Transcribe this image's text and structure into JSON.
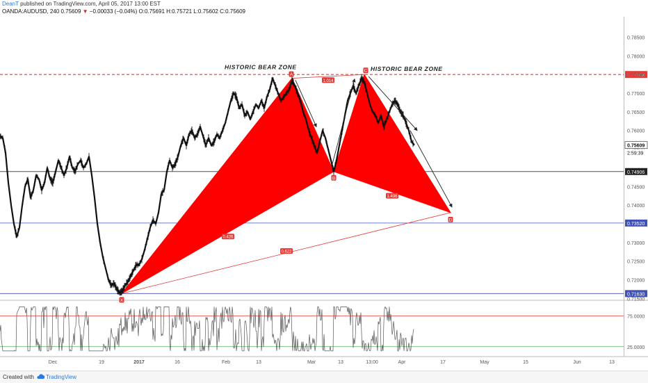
{
  "header": {
    "author": "DeanT",
    "published": "published on TradingView.com, April 05, 2017 13:00 EST",
    "symbol_line": "OANDA:AUDUSD, 240",
    "last": "0.75609",
    "change": "−0.00033 (−0.04%)",
    "ohlc": "O:0.75691 H:0.75721 L:0.75602 C:0.75609"
  },
  "footer": {
    "created": "Created with",
    "brand": "TradingView"
  },
  "colors": {
    "pattern": "#ff0000",
    "line_red": "#e53935",
    "line_blue": "#3f51b5",
    "price": "#111111",
    "text_blue": "#2a7ae2"
  },
  "chart_data": {
    "type": "line",
    "instrument": "OANDA:AUDUSD",
    "timeframe": "240",
    "ylim": [
      0.7145,
      0.7905
    ],
    "x_tick_labels": [
      "Dec",
      "19",
      "2017",
      "16",
      "Feb",
      "13",
      "Mar",
      "13",
      "13:00",
      "Apr",
      "17",
      "May",
      "15",
      "Jun",
      "13"
    ],
    "y_ticks": [
      0.785,
      0.78,
      0.775,
      0.77,
      0.765,
      0.76,
      0.755,
      0.745,
      0.74,
      0.73,
      0.725,
      0.72,
      0.715
    ],
    "y_tick_labels": [
      "0.78500",
      "0.78000",
      "0.77500",
      "0.77000",
      "0.76500",
      "0.76000",
      "0.75500",
      "0.74500",
      "0.74000",
      "0.73000",
      "0.72500",
      "0.72000",
      "0.71500"
    ],
    "price_path": [
      [
        0,
        0.7585
      ],
      [
        4,
        0.758
      ],
      [
        8,
        0.754
      ],
      [
        12,
        0.746
      ],
      [
        16,
        0.74
      ],
      [
        20,
        0.735
      ],
      [
        24,
        0.7315
      ],
      [
        28,
        0.734
      ],
      [
        32,
        0.74
      ],
      [
        36,
        0.745
      ],
      [
        40,
        0.747
      ],
      [
        44,
        0.742
      ],
      [
        48,
        0.744
      ],
      [
        52,
        0.748
      ],
      [
        56,
        0.747
      ],
      [
        60,
        0.744
      ],
      [
        64,
        0.746
      ],
      [
        68,
        0.75
      ],
      [
        72,
        0.747
      ],
      [
        76,
        0.746
      ],
      [
        80,
        0.749
      ],
      [
        84,
        0.752
      ],
      [
        88,
        0.75
      ],
      [
        92,
        0.748
      ],
      [
        96,
        0.75
      ],
      [
        100,
        0.753
      ],
      [
        104,
        0.75
      ],
      [
        108,
        0.749
      ],
      [
        112,
        0.751
      ],
      [
        116,
        0.752
      ],
      [
        120,
        0.75
      ],
      [
        124,
        0.751
      ],
      [
        128,
        0.753
      ],
      [
        132,
        0.748
      ],
      [
        136,
        0.742
      ],
      [
        140,
        0.735
      ],
      [
        144,
        0.73
      ],
      [
        148,
        0.726
      ],
      [
        152,
        0.723
      ],
      [
        156,
        0.72
      ],
      [
        160,
        0.7185
      ],
      [
        164,
        0.719
      ],
      [
        168,
        0.7175
      ],
      [
        172,
        0.7165
      ],
      [
        176,
        0.717
      ],
      [
        180,
        0.7185
      ],
      [
        184,
        0.7195
      ],
      [
        188,
        0.721
      ],
      [
        192,
        0.7225
      ],
      [
        196,
        0.724
      ],
      [
        200,
        0.724
      ],
      [
        204,
        0.7255
      ],
      [
        208,
        0.728
      ],
      [
        212,
        0.731
      ],
      [
        216,
        0.734
      ],
      [
        220,
        0.736
      ],
      [
        224,
        0.735
      ],
      [
        228,
        0.738
      ],
      [
        232,
        0.743
      ],
      [
        236,
        0.744
      ],
      [
        240,
        0.749
      ],
      [
        244,
        0.752
      ],
      [
        248,
        0.75
      ],
      [
        252,
        0.751
      ],
      [
        256,
        0.753
      ],
      [
        260,
        0.756
      ],
      [
        264,
        0.758
      ],
      [
        268,
        0.756
      ],
      [
        272,
        0.759
      ],
      [
        276,
        0.76
      ],
      [
        280,
        0.758
      ],
      [
        284,
        0.759
      ],
      [
        288,
        0.761
      ],
      [
        292,
        0.7585
      ],
      [
        296,
        0.756
      ],
      [
        300,
        0.758
      ],
      [
        304,
        0.756
      ],
      [
        308,
        0.757
      ],
      [
        312,
        0.759
      ],
      [
        316,
        0.758
      ],
      [
        320,
        0.76
      ],
      [
        324,
        0.762
      ],
      [
        328,
        0.765
      ],
      [
        332,
        0.768
      ],
      [
        336,
        0.77
      ],
      [
        340,
        0.769
      ],
      [
        344,
        0.766
      ],
      [
        348,
        0.767
      ],
      [
        352,
        0.764
      ],
      [
        356,
        0.765
      ],
      [
        360,
        0.763
      ],
      [
        364,
        0.765
      ],
      [
        368,
        0.767
      ],
      [
        372,
        0.766
      ],
      [
        376,
        0.768
      ],
      [
        380,
        0.766
      ],
      [
        384,
        0.769
      ],
      [
        388,
        0.771
      ],
      [
        392,
        0.774
      ],
      [
        396,
        0.772
      ],
      [
        400,
        0.77
      ],
      [
        404,
        0.768
      ],
      [
        408,
        0.769
      ],
      [
        412,
        0.77
      ],
      [
        416,
        0.771
      ],
      [
        420,
        0.7735
      ],
      [
        424,
        0.772
      ],
      [
        428,
        0.77
      ],
      [
        432,
        0.768
      ],
      [
        436,
        0.765
      ],
      [
        440,
        0.763
      ],
      [
        444,
        0.76
      ],
      [
        448,
        0.758
      ],
      [
        452,
        0.756
      ],
      [
        456,
        0.754
      ],
      [
        460,
        0.757
      ],
      [
        464,
        0.76
      ],
      [
        468,
        0.758
      ],
      [
        472,
        0.755
      ],
      [
        476,
        0.752
      ],
      [
        480,
        0.749
      ],
      [
        484,
        0.752
      ],
      [
        488,
        0.756
      ],
      [
        492,
        0.76
      ],
      [
        496,
        0.764
      ],
      [
        500,
        0.768
      ],
      [
        504,
        0.77
      ],
      [
        508,
        0.772
      ],
      [
        512,
        0.77
      ],
      [
        516,
        0.772
      ],
      [
        520,
        0.774
      ],
      [
        524,
        0.773
      ],
      [
        528,
        0.77
      ],
      [
        532,
        0.767
      ],
      [
        536,
        0.765
      ],
      [
        540,
        0.764
      ],
      [
        544,
        0.762
      ],
      [
        548,
        0.764
      ],
      [
        552,
        0.761
      ],
      [
        556,
        0.763
      ],
      [
        560,
        0.765
      ],
      [
        564,
        0.767
      ],
      [
        568,
        0.768
      ],
      [
        572,
        0.767
      ],
      [
        576,
        0.765
      ],
      [
        580,
        0.764
      ],
      [
        584,
        0.762
      ],
      [
        588,
        0.76
      ],
      [
        592,
        0.757
      ],
      [
        596,
        0.7561
      ]
    ],
    "harmonic_pattern": {
      "points": [
        {
          "label": "X",
          "x": 175,
          "price": 0.7163
        },
        {
          "label": "A",
          "x": 420,
          "price": 0.774
        },
        {
          "label": "B",
          "x": 480,
          "price": 0.749
        },
        {
          "label": "C",
          "x": 524,
          "price": 0.775
        },
        {
          "label": "D",
          "x": 648,
          "price": 0.738
        }
      ],
      "ratios": [
        {
          "label": "1.014",
          "x": 472,
          "price": 0.7735
        },
        {
          "label": "0.426",
          "x": 328,
          "price": 0.7316
        },
        {
          "label": "1.496",
          "x": 564,
          "price": 0.7425
        },
        {
          "label": "0.622",
          "x": 412,
          "price": 0.7277
        }
      ]
    },
    "horizontal_levels": [
      {
        "price": 0.775,
        "label": "0.77502",
        "color": "#e53935",
        "style": "dashed"
      },
      {
        "price": 0.749,
        "label": "0.74906",
        "color": "#333333",
        "style": "solid"
      },
      {
        "price": 0.7352,
        "label": "0.73520",
        "color": "#3f51b5",
        "style": "solid"
      },
      {
        "price": 0.7163,
        "label": "0.71630",
        "color": "#3f51b5",
        "style": "solid"
      }
    ],
    "current_price": {
      "price": 0.7561,
      "label": "0.75609",
      "countdown": "2:59:39"
    },
    "annotations": [
      {
        "text": "HISTORIC BEAR ZONE",
        "x": 323,
        "price": 0.7764
      },
      {
        "text": "HISTORIC BEAR ZONE",
        "x": 533,
        "price": 0.776
      }
    ],
    "oscillator": {
      "levels": [
        {
          "value": 75,
          "label": "75.0000"
        },
        {
          "value": 25,
          "label": "25.0000"
        }
      ],
      "ylim": [
        10,
        95
      ],
      "upper_color": "#e53935",
      "lower_color": "#4caf50"
    }
  }
}
